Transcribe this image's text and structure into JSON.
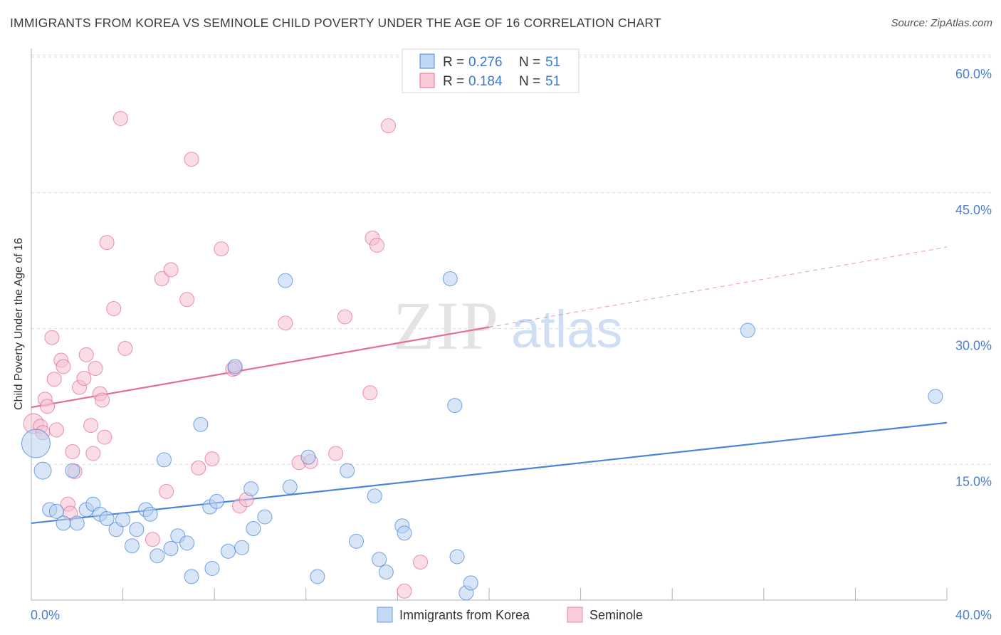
{
  "title": "IMMIGRANTS FROM KOREA VS SEMINOLE CHILD POVERTY UNDER THE AGE OF 16 CORRELATION CHART",
  "source": "Source: ZipAtlas.com",
  "watermark": {
    "zip": "ZIP",
    "atlas": "atlas"
  },
  "legend_top": {
    "r_label": "R =",
    "n_label": "N =",
    "rows": [
      {
        "series": "Immigrants from Korea",
        "r": "0.276",
        "n": "51",
        "color": "#a9c8f0"
      },
      {
        "series": "Seminole",
        "r": "0.184",
        "n": "51",
        "color": "#f6b8cb"
      }
    ]
  },
  "chart_data": {
    "type": "scatter",
    "title": "IMMIGRANTS FROM KOREA VS SEMINOLE CHILD POVERTY UNDER THE AGE OF 16 CORRELATION CHART",
    "xlabel": "",
    "ylabel": "Child Poverty Under the Age of 16",
    "xlim": [
      0,
      40
    ],
    "ylim": [
      0,
      60
    ],
    "x_tick_labels": [
      "0.0%",
      "40.0%"
    ],
    "y_ticks": [
      15,
      30,
      45,
      60
    ],
    "y_tick_labels": [
      "15.0%",
      "30.0%",
      "45.0%",
      "60.0%"
    ],
    "grid": true,
    "legend_placement": "top-center",
    "series": [
      {
        "name": "Immigrants from Korea",
        "color": "#4a86d8",
        "fill": "#b7d0f1",
        "r": 0.276,
        "n": 51,
        "trend": {
          "x": [
            0,
            40
          ],
          "y": [
            8.5,
            19.6
          ],
          "dashed_after": null
        },
        "points": [
          [
            0.2,
            17.3
          ],
          [
            0.5,
            14.3
          ],
          [
            0.8,
            10.0
          ],
          [
            1.1,
            9.8
          ],
          [
            1.4,
            8.5
          ],
          [
            1.8,
            14.3
          ],
          [
            2.0,
            8.5
          ],
          [
            2.4,
            10.0
          ],
          [
            2.7,
            10.6
          ],
          [
            3.0,
            9.5
          ],
          [
            3.3,
            9.0
          ],
          [
            3.7,
            7.8
          ],
          [
            4.0,
            8.9
          ],
          [
            4.4,
            6.0
          ],
          [
            4.6,
            7.8
          ],
          [
            5.0,
            10.0
          ],
          [
            5.2,
            9.5
          ],
          [
            5.5,
            4.9
          ],
          [
            5.8,
            15.5
          ],
          [
            6.1,
            5.7
          ],
          [
            6.4,
            7.1
          ],
          [
            6.8,
            6.3
          ],
          [
            7.0,
            2.6
          ],
          [
            7.4,
            19.4
          ],
          [
            7.8,
            10.3
          ],
          [
            7.9,
            3.5
          ],
          [
            8.1,
            10.9
          ],
          [
            8.6,
            5.4
          ],
          [
            8.9,
            25.8
          ],
          [
            9.2,
            5.8
          ],
          [
            9.6,
            12.3
          ],
          [
            9.7,
            7.9
          ],
          [
            10.2,
            9.2
          ],
          [
            11.1,
            35.3
          ],
          [
            11.3,
            12.5
          ],
          [
            12.1,
            15.8
          ],
          [
            12.5,
            2.6
          ],
          [
            13.8,
            14.3
          ],
          [
            14.2,
            6.5
          ],
          [
            15.0,
            11.5
          ],
          [
            15.2,
            4.5
          ],
          [
            15.5,
            3.1
          ],
          [
            16.2,
            8.2
          ],
          [
            16.3,
            7.4
          ],
          [
            18.3,
            35.5
          ],
          [
            18.5,
            21.5
          ],
          [
            18.6,
            4.8
          ],
          [
            19.0,
            0.8
          ],
          [
            19.2,
            1.9
          ],
          [
            31.3,
            29.8
          ],
          [
            39.5,
            22.5
          ]
        ],
        "sizes": [
          20,
          12,
          10,
          10,
          10,
          10,
          10,
          10,
          10,
          10,
          10,
          10,
          10,
          10,
          10,
          10,
          10,
          10,
          10,
          10,
          10,
          10,
          10,
          10,
          10,
          10,
          10,
          10,
          10,
          10,
          10,
          10,
          10,
          10,
          10,
          10,
          10,
          10,
          10,
          10,
          10,
          10,
          10,
          10,
          10,
          10,
          10,
          10,
          10,
          10,
          10
        ]
      },
      {
        "name": "Seminole",
        "color": "#e46d97",
        "fill": "#f6bfd0",
        "r": 0.184,
        "n": 51,
        "trend": {
          "x": [
            0,
            40
          ],
          "y": [
            21.3,
            39.0
          ],
          "dashed_after": 20
        },
        "points": [
          [
            0.1,
            19.5
          ],
          [
            0.4,
            19.2
          ],
          [
            0.5,
            18.5
          ],
          [
            0.6,
            22.2
          ],
          [
            0.7,
            21.4
          ],
          [
            0.9,
            29.0
          ],
          [
            1.0,
            24.4
          ],
          [
            1.1,
            18.8
          ],
          [
            1.3,
            26.5
          ],
          [
            1.4,
            25.8
          ],
          [
            1.6,
            10.6
          ],
          [
            1.7,
            9.6
          ],
          [
            1.8,
            16.4
          ],
          [
            1.9,
            14.2
          ],
          [
            2.1,
            23.5
          ],
          [
            2.3,
            24.5
          ],
          [
            2.4,
            27.1
          ],
          [
            2.6,
            19.3
          ],
          [
            2.7,
            16.2
          ],
          [
            2.8,
            25.6
          ],
          [
            3.0,
            22.8
          ],
          [
            3.1,
            22.1
          ],
          [
            3.2,
            18.0
          ],
          [
            3.3,
            39.5
          ],
          [
            3.6,
            32.2
          ],
          [
            3.9,
            53.2
          ],
          [
            4.1,
            27.8
          ],
          [
            5.3,
            6.7
          ],
          [
            5.7,
            35.5
          ],
          [
            5.9,
            12.0
          ],
          [
            6.1,
            36.5
          ],
          [
            6.8,
            33.2
          ],
          [
            7.0,
            48.7
          ],
          [
            7.3,
            14.6
          ],
          [
            7.9,
            15.6
          ],
          [
            8.3,
            38.8
          ],
          [
            8.8,
            25.5
          ],
          [
            8.9,
            25.6
          ],
          [
            9.1,
            10.4
          ],
          [
            9.4,
            11.1
          ],
          [
            11.1,
            30.6
          ],
          [
            11.7,
            15.2
          ],
          [
            12.2,
            15.3
          ],
          [
            13.3,
            16.2
          ],
          [
            13.7,
            31.3
          ],
          [
            14.8,
            22.9
          ],
          [
            14.9,
            40.0
          ],
          [
            15.1,
            39.2
          ],
          [
            15.6,
            52.4
          ],
          [
            16.3,
            1.0
          ],
          [
            17.0,
            4.2
          ]
        ],
        "sizes": [
          14,
          10,
          10,
          10,
          10,
          10,
          10,
          10,
          10,
          10,
          10,
          10,
          10,
          10,
          10,
          10,
          10,
          10,
          10,
          10,
          10,
          10,
          10,
          10,
          10,
          10,
          10,
          10,
          10,
          10,
          10,
          10,
          10,
          10,
          10,
          10,
          10,
          10,
          10,
          10,
          10,
          10,
          10,
          10,
          10,
          10,
          10,
          10,
          10,
          10,
          10
        ]
      }
    ]
  }
}
